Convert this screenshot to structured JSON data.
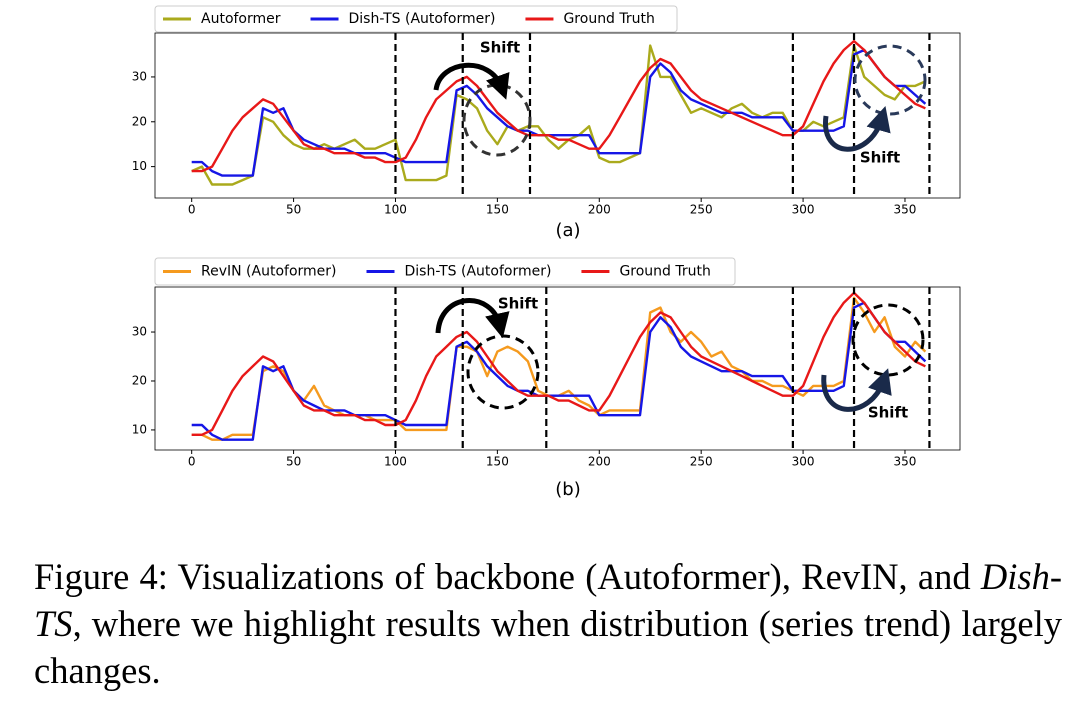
{
  "chart_data": [
    {
      "type": "line",
      "label": "(a)",
      "x": [
        0,
        5,
        10,
        15,
        20,
        25,
        30,
        35,
        40,
        45,
        50,
        55,
        60,
        65,
        70,
        75,
        80,
        85,
        90,
        95,
        100,
        105,
        110,
        115,
        120,
        125,
        130,
        135,
        140,
        145,
        150,
        155,
        160,
        165,
        170,
        175,
        180,
        185,
        190,
        195,
        200,
        205,
        210,
        215,
        220,
        225,
        230,
        235,
        240,
        245,
        250,
        255,
        260,
        265,
        270,
        275,
        280,
        285,
        290,
        295,
        300,
        305,
        310,
        315,
        320,
        325,
        330,
        335,
        340,
        345,
        350,
        355,
        360
      ],
      "series": [
        {
          "name": "Autoformer",
          "color": "#aaaa1c",
          "values": [
            9,
            10,
            6,
            6,
            6,
            7,
            8,
            21,
            20,
            17,
            15,
            14,
            14,
            15,
            14,
            15,
            16,
            14,
            14,
            15,
            16,
            7,
            7,
            7,
            7,
            8,
            26,
            25,
            23,
            18,
            15,
            19,
            18,
            19,
            19,
            16,
            14,
            16,
            17,
            19,
            12,
            11,
            11,
            12,
            13,
            37,
            30,
            30,
            26,
            22,
            23,
            22,
            21,
            23,
            24,
            22,
            21,
            22,
            22,
            18,
            18,
            20,
            19,
            20,
            21,
            37,
            30,
            28,
            26,
            25,
            28,
            28,
            29
          ]
        },
        {
          "name": "Dish-TS (Autoformer)",
          "color": "#1616e6",
          "values": [
            11,
            11,
            9,
            8,
            8,
            8,
            8,
            23,
            22,
            23,
            18,
            16,
            15,
            14,
            14,
            14,
            13,
            13,
            13,
            13,
            12,
            11,
            11,
            11,
            11,
            11,
            27,
            28,
            26,
            23,
            21,
            19,
            18,
            18,
            17,
            17,
            17,
            17,
            17,
            17,
            13,
            13,
            13,
            13,
            13,
            30,
            33,
            31,
            27,
            25,
            24,
            23,
            22,
            22,
            22,
            21,
            21,
            21,
            21,
            18,
            18,
            18,
            18,
            18,
            19,
            35,
            36,
            33,
            30,
            28,
            28,
            26,
            24
          ]
        },
        {
          "name": "Ground Truth",
          "color": "#e81818",
          "values": [
            9,
            9,
            10,
            14,
            18,
            21,
            23,
            25,
            24,
            21,
            18,
            15,
            14,
            14,
            13,
            13,
            13,
            12,
            12,
            11,
            11,
            12,
            16,
            21,
            25,
            27,
            29,
            30,
            28,
            25,
            22,
            20,
            18,
            17,
            17,
            17,
            16,
            16,
            15,
            14,
            14,
            17,
            21,
            25,
            29,
            32,
            34,
            33,
            30,
            27,
            25,
            24,
            23,
            22,
            21,
            20,
            19,
            18,
            17,
            17,
            19,
            24,
            29,
            33,
            36,
            38,
            36,
            33,
            30,
            28,
            26,
            24,
            23
          ]
        }
      ],
      "xlim": [
        -18,
        377
      ],
      "ylim": [
        3,
        39.8
      ],
      "xticks": [
        0,
        50,
        100,
        150,
        200,
        250,
        300,
        350
      ],
      "yticks": [
        10,
        20,
        30
      ],
      "vlines": [
        100,
        133,
        166,
        295,
        325,
        362
      ],
      "annotations": [
        "Shift",
        "Shift"
      ]
    },
    {
      "type": "line",
      "label": "(b)",
      "x": [
        0,
        5,
        10,
        15,
        20,
        25,
        30,
        35,
        40,
        45,
        50,
        55,
        60,
        65,
        70,
        75,
        80,
        85,
        90,
        95,
        100,
        105,
        110,
        115,
        120,
        125,
        130,
        135,
        140,
        145,
        150,
        155,
        160,
        165,
        170,
        175,
        180,
        185,
        190,
        195,
        200,
        205,
        210,
        215,
        220,
        225,
        230,
        235,
        240,
        245,
        250,
        255,
        260,
        265,
        270,
        275,
        280,
        285,
        290,
        295,
        300,
        305,
        310,
        315,
        320,
        325,
        330,
        335,
        340,
        345,
        350,
        355,
        360
      ],
      "series": [
        {
          "name": "RevIN (Autoformer)",
          "color": "#f59a1e",
          "values": [
            9,
            9,
            8,
            8,
            9,
            9,
            9,
            22,
            23,
            22,
            18,
            16,
            19,
            15,
            14,
            13,
            13,
            13,
            12,
            12,
            12,
            10,
            10,
            10,
            10,
            10,
            27,
            27,
            26,
            21,
            26,
            27,
            26,
            24,
            18,
            17,
            17,
            18,
            16,
            15,
            13,
            14,
            14,
            14,
            14,
            34,
            35,
            30,
            28,
            30,
            28,
            25,
            26,
            23,
            22,
            20,
            20,
            19,
            19,
            18,
            17,
            19,
            19,
            19,
            20,
            37,
            34,
            30,
            33,
            27,
            25,
            28,
            26
          ]
        },
        {
          "name": "Dish-TS (Autoformer)",
          "color": "#1616e6",
          "values": [
            11,
            11,
            9,
            8,
            8,
            8,
            8,
            23,
            22,
            23,
            18,
            16,
            15,
            14,
            14,
            14,
            13,
            13,
            13,
            13,
            12,
            11,
            11,
            11,
            11,
            11,
            27,
            28,
            26,
            23,
            21,
            19,
            18,
            18,
            17,
            17,
            17,
            17,
            17,
            17,
            13,
            13,
            13,
            13,
            13,
            30,
            33,
            31,
            27,
            25,
            24,
            23,
            22,
            22,
            22,
            21,
            21,
            21,
            21,
            18,
            18,
            18,
            18,
            18,
            19,
            35,
            36,
            33,
            30,
            28,
            28,
            26,
            24
          ]
        },
        {
          "name": "Ground Truth",
          "color": "#e81818",
          "values": [
            9,
            9,
            10,
            14,
            18,
            21,
            23,
            25,
            24,
            21,
            18,
            15,
            14,
            14,
            13,
            13,
            13,
            12,
            12,
            11,
            11,
            12,
            16,
            21,
            25,
            27,
            29,
            30,
            28,
            25,
            22,
            20,
            18,
            17,
            17,
            17,
            16,
            16,
            15,
            14,
            14,
            17,
            21,
            25,
            29,
            32,
            34,
            33,
            30,
            27,
            25,
            24,
            23,
            22,
            21,
            20,
            19,
            18,
            17,
            17,
            19,
            24,
            29,
            33,
            36,
            38,
            36,
            33,
            30,
            28,
            26,
            24,
            23
          ]
        }
      ],
      "xlim": [
        -18,
        377
      ],
      "ylim": [
        5.9,
        39.2
      ],
      "xticks": [
        0,
        50,
        100,
        150,
        200,
        250,
        300,
        350
      ],
      "yticks": [
        10,
        20,
        30
      ],
      "vlines": [
        100,
        133,
        174,
        295,
        325,
        362
      ],
      "annotations": [
        "Shift",
        "Shift"
      ]
    }
  ],
  "caption": {
    "parts": [
      {
        "text": "Figure 4: Visualizations of backbone (Autoformer), RevIN, and ",
        "italic": false
      },
      {
        "text": "Dish-TS",
        "italic": true
      },
      {
        "text": ", where we highlight results when distribution (series trend) largely changes.",
        "italic": false
      }
    ]
  }
}
